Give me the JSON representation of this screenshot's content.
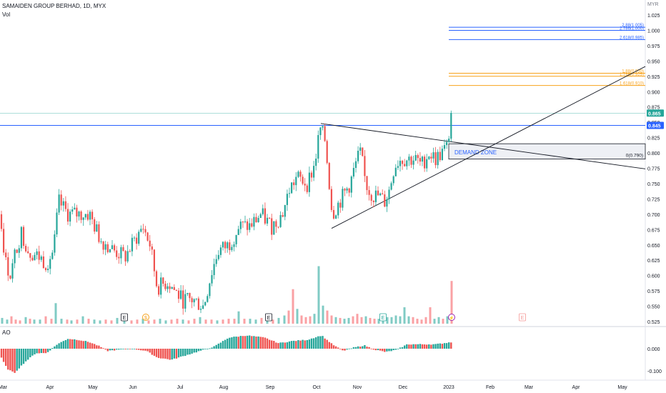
{
  "header": {
    "symbol_line": "SAMAIDEN GROUP BERHAD, 1D, MYX",
    "volume_label": "Vol",
    "ao_label": "AO",
    "currency": "MYR"
  },
  "colors": {
    "up": "#26a69a",
    "down": "#ef5350",
    "vol_up": "#80cbc4",
    "vol_down": "#faa1a4",
    "fib_blue": "#2962ff",
    "fib_orange": "#f7a21b",
    "trend": "#131722",
    "last_price_bg": "#26a69a",
    "resistance_bg": "#2962ff"
  },
  "chart_data": {
    "type": "candlestick",
    "price_axis": {
      "min": 0.525,
      "max": 1.025,
      "ticks": [
        "1.025",
        "1.000",
        "0.975",
        "0.950",
        "0.925",
        "0.900",
        "0.875",
        "0.850",
        "0.825",
        "0.800",
        "0.775",
        "0.750",
        "0.725",
        "0.700",
        "0.675",
        "0.650",
        "0.625",
        "0.600",
        "0.575",
        "0.550",
        "0.525"
      ]
    },
    "ao_axis": {
      "ticks": [
        "0.000",
        "-0.100"
      ]
    },
    "time_axis": [
      "Mar",
      "Apr",
      "May",
      "Jun",
      "Jul",
      "Aug",
      "Sep",
      "Oct",
      "Nov",
      "Dec",
      "2023",
      "Feb",
      "Mar",
      "Apr",
      "May"
    ],
    "last_price": "0.865",
    "resistance_price": "0.845",
    "fib_levels": [
      {
        "label": "2.88(1.005)",
        "value": 1.005,
        "color": "blue"
      },
      {
        "label": "2.786(1.000)",
        "value": 1.0,
        "color": "blue"
      },
      {
        "label": "2.618(0.985)",
        "value": 0.985,
        "color": "blue"
      },
      {
        "label": "1.88(0.930)",
        "value": 0.93,
        "color": "orange"
      },
      {
        "label": "1.786(0.925)",
        "value": 0.925,
        "color": "orange"
      },
      {
        "label": "1.618(0.910)",
        "value": 0.91,
        "color": "orange"
      }
    ],
    "zero_level": {
      "label": "0(0.790)",
      "value": 0.79
    },
    "demand_zone": {
      "label": "DEMAND ZONE",
      "top": 0.815,
      "bottom": 0.79
    },
    "event_markers": [
      "E",
      "$",
      "E",
      "E",
      "⚡",
      "E"
    ],
    "series_path": [
      [
        0,
        0.7
      ],
      [
        8,
        0.62
      ],
      [
        15,
        0.6
      ],
      [
        22,
        0.64
      ],
      [
        30,
        0.67
      ],
      [
        40,
        0.64
      ],
      [
        55,
        0.63
      ],
      [
        65,
        0.62
      ],
      [
        75,
        0.64
      ],
      [
        82,
        0.72
      ],
      [
        95,
        0.7
      ],
      [
        110,
        0.7
      ],
      [
        125,
        0.7
      ],
      [
        140,
        0.66
      ],
      [
        160,
        0.64
      ],
      [
        175,
        0.63
      ],
      [
        185,
        0.65
      ],
      [
        200,
        0.68
      ],
      [
        210,
        0.65
      ],
      [
        220,
        0.58
      ],
      [
        235,
        0.59
      ],
      [
        255,
        0.56
      ],
      [
        270,
        0.56
      ],
      [
        285,
        0.55
      ],
      [
        295,
        0.6
      ],
      [
        305,
        0.64
      ],
      [
        320,
        0.65
      ],
      [
        335,
        0.68
      ],
      [
        350,
        0.68
      ],
      [
        365,
        0.7
      ],
      [
        380,
        0.68
      ],
      [
        395,
        0.7
      ],
      [
        405,
        0.74
      ],
      [
        415,
        0.76
      ],
      [
        430,
        0.75
      ],
      [
        440,
        0.78
      ],
      [
        448,
        0.84
      ],
      [
        455,
        0.82
      ],
      [
        460,
        0.76
      ],
      [
        465,
        0.7
      ],
      [
        470,
        0.71
      ],
      [
        480,
        0.73
      ],
      [
        490,
        0.75
      ],
      [
        500,
        0.79
      ],
      [
        505,
        0.8
      ],
      [
        510,
        0.76
      ],
      [
        515,
        0.74
      ],
      [
        522,
        0.73
      ],
      [
        530,
        0.73
      ],
      [
        538,
        0.72
      ],
      [
        545,
        0.74
      ],
      [
        552,
        0.78
      ],
      [
        560,
        0.79
      ],
      [
        570,
        0.79
      ],
      [
        580,
        0.79
      ],
      [
        590,
        0.78
      ],
      [
        600,
        0.8
      ],
      [
        610,
        0.79
      ],
      [
        618,
        0.8
      ],
      [
        626,
        0.81
      ],
      [
        632,
        0.865
      ]
    ],
    "volume_bars": [
      [
        3,
        0.07
      ],
      [
        10,
        0.05
      ],
      [
        16,
        0.09
      ],
      [
        22,
        0.05
      ],
      [
        28,
        0.04
      ],
      [
        36,
        0.08
      ],
      [
        42,
        0.06
      ],
      [
        48,
        0.05
      ],
      [
        56,
        0.05
      ],
      [
        64,
        0.09
      ],
      [
        72,
        0.06
      ],
      [
        78,
        0.25
      ],
      [
        86,
        0.06
      ],
      [
        94,
        0.05
      ],
      [
        100,
        0.04
      ],
      [
        108,
        0.05
      ],
      [
        116,
        0.09
      ],
      [
        124,
        0.06
      ],
      [
        132,
        0.05
      ],
      [
        140,
        0.04
      ],
      [
        148,
        0.05
      ],
      [
        156,
        0.04
      ],
      [
        164,
        0.07
      ],
      [
        174,
        0.05
      ],
      [
        184,
        0.04
      ],
      [
        192,
        0.05
      ],
      [
        200,
        0.06
      ],
      [
        208,
        0.04
      ],
      [
        216,
        0.05
      ],
      [
        224,
        0.06
      ],
      [
        232,
        0.04
      ],
      [
        240,
        0.05
      ],
      [
        248,
        0.06
      ],
      [
        256,
        0.05
      ],
      [
        264,
        0.04
      ],
      [
        272,
        0.06
      ],
      [
        280,
        0.08
      ],
      [
        288,
        0.05
      ],
      [
        296,
        0.05
      ],
      [
        304,
        0.04
      ],
      [
        312,
        0.05
      ],
      [
        320,
        0.06
      ],
      [
        328,
        0.06
      ],
      [
        334,
        0.15
      ],
      [
        342,
        0.06
      ],
      [
        350,
        0.06
      ],
      [
        358,
        0.05
      ],
      [
        366,
        0.07
      ],
      [
        374,
        0.07
      ],
      [
        382,
        0.05
      ],
      [
        390,
        0.07
      ],
      [
        398,
        0.1
      ],
      [
        404,
        0.16
      ],
      [
        410,
        0.42
      ],
      [
        416,
        0.18
      ],
      [
        422,
        0.1
      ],
      [
        428,
        0.08
      ],
      [
        434,
        0.09
      ],
      [
        440,
        0.12
      ],
      [
        446,
        0.7
      ],
      [
        452,
        0.22
      ],
      [
        458,
        0.16
      ],
      [
        464,
        0.1
      ],
      [
        470,
        0.08
      ],
      [
        476,
        0.07
      ],
      [
        482,
        0.06
      ],
      [
        488,
        0.07
      ],
      [
        494,
        0.09
      ],
      [
        500,
        0.12
      ],
      [
        506,
        0.08
      ],
      [
        512,
        0.09
      ],
      [
        518,
        0.07
      ],
      [
        524,
        0.06
      ],
      [
        530,
        0.06
      ],
      [
        536,
        0.07
      ],
      [
        542,
        0.08
      ],
      [
        548,
        0.08
      ],
      [
        554,
        0.1
      ],
      [
        560,
        0.09
      ],
      [
        566,
        0.2
      ],
      [
        572,
        0.09
      ],
      [
        578,
        0.08
      ],
      [
        584,
        0.06
      ],
      [
        590,
        0.05
      ],
      [
        596,
        0.08
      ],
      [
        602,
        0.2
      ],
      [
        608,
        0.06
      ],
      [
        614,
        0.08
      ],
      [
        620,
        0.06
      ],
      [
        626,
        0.09
      ],
      [
        632,
        0.52
      ]
    ]
  }
}
